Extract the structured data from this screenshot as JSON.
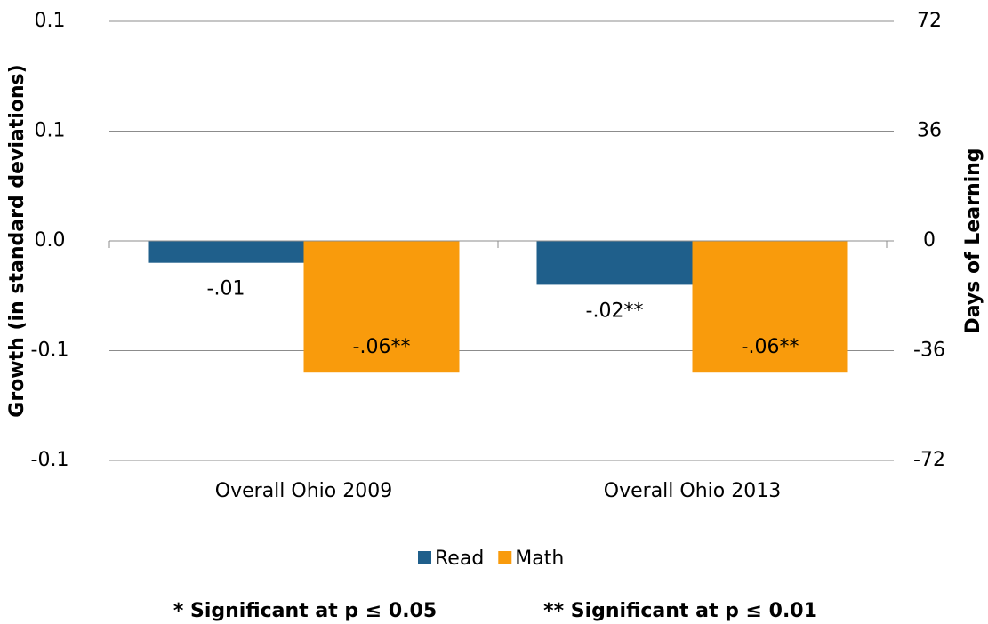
{
  "chart_data": {
    "type": "bar",
    "categories": [
      "Overall Ohio 2009",
      "Overall Ohio 2013"
    ],
    "series": [
      {
        "name": "Read",
        "color": "#1f5f8b",
        "values": [
          -0.01,
          -0.02
        ],
        "value_labels": [
          "-.01",
          "-.02**"
        ]
      },
      {
        "name": "Math",
        "color": "#f99b0c",
        "values": [
          -0.06,
          -0.06
        ],
        "value_labels": [
          "-.06**",
          "-.06**"
        ]
      }
    ],
    "ylabel": "Growth (in standard deviations)",
    "y2label": "Days of Learning",
    "ylim": [
      -0.1,
      0.1
    ],
    "yticks": [
      -0.1,
      {
        "value": -0.05,
        "label": "-0.1"
      },
      {
        "value": 0,
        "label": "0.0"
      },
      {
        "value": 0.05,
        "label": "0.1"
      },
      0.1
    ],
    "y2lim": [
      -72,
      72
    ],
    "y2ticks": [
      -72,
      -36,
      0,
      36,
      72
    ],
    "grid": true,
    "legend": "bottom",
    "annotations": [
      "* Significant at p ≤ 0.05",
      "** Significant at p ≤ 0.01"
    ]
  }
}
